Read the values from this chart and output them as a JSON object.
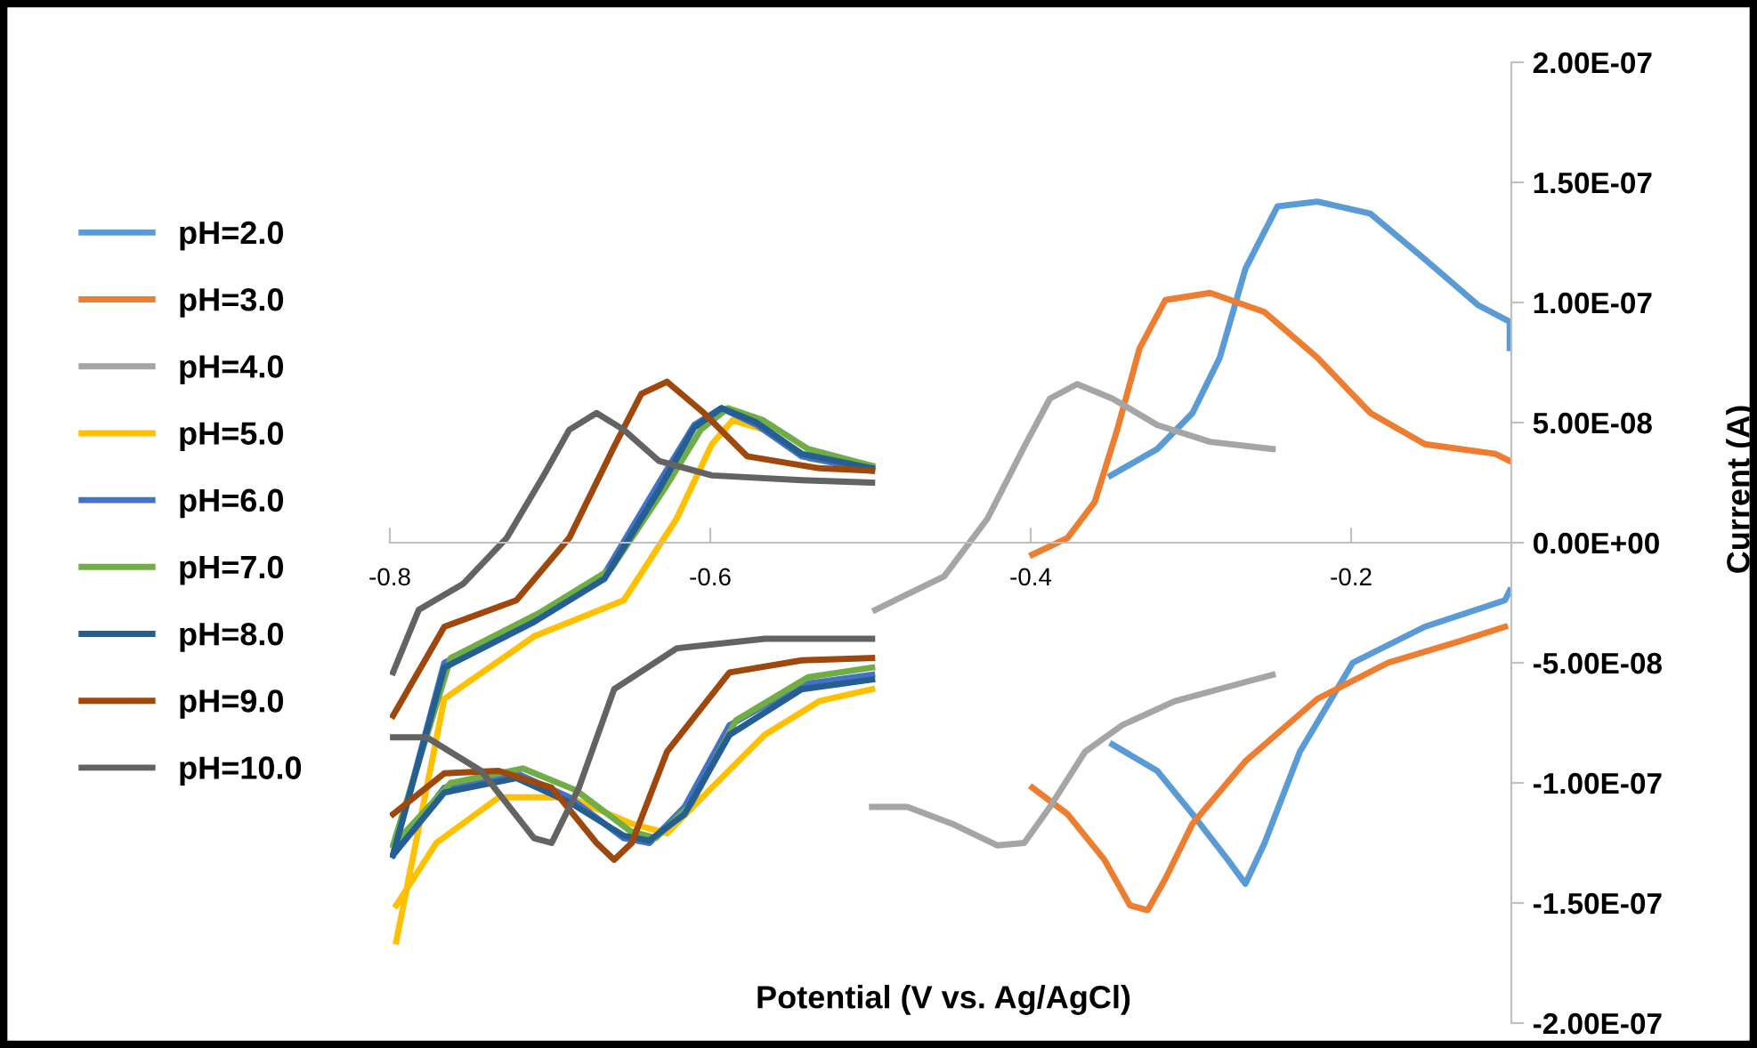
{
  "chart_data": {
    "type": "line",
    "xlabel": "Potential (V vs. Ag/AgCl)",
    "ylabel": "Current (A)",
    "xlim": [
      -0.8,
      -0.1
    ],
    "xticks": [
      -0.8,
      -0.6,
      -0.4,
      -0.2
    ],
    "ylim": [
      -2e-07,
      2e-07
    ],
    "yticks": [
      {
        "value": 2e-07,
        "label": "2.00E-07"
      },
      {
        "value": 1.5e-07,
        "label": "1.50E-07"
      },
      {
        "value": 1e-07,
        "label": "1.00E-07"
      },
      {
        "value": 5e-08,
        "label": "5.00E-08"
      },
      {
        "value": 0,
        "label": "0.00E+00"
      },
      {
        "value": -5e-08,
        "label": "-5.00E-08"
      },
      {
        "value": -1e-07,
        "label": "-1.00E-07"
      },
      {
        "value": -1.5e-07,
        "label": "-1.50E-07"
      },
      {
        "value": -2e-07,
        "label": "-2.00E-07"
      }
    ],
    "grid": false,
    "legend": "left",
    "marker": "none",
    "line_style": "solid",
    "series": [
      {
        "name": "pH=2.0",
        "color": "#5b9bd5",
        "x": [
          -0.35,
          -0.321,
          -0.299,
          -0.282,
          -0.266,
          -0.246,
          -0.221,
          -0.188,
          -0.154,
          -0.121,
          -0.101,
          -0.101,
          null,
          -0.349,
          -0.321,
          -0.299,
          -0.277,
          -0.266,
          -0.254,
          -0.232,
          -0.199,
          -0.154,
          -0.104,
          -0.101
        ],
        "values": [
          2.8e-08,
          3.9e-08,
          5.4e-08,
          7.7e-08,
          1.14e-07,
          1.4e-07,
          1.42e-07,
          1.37e-07,
          1.18e-07,
          9.9e-08,
          9.2e-08,
          8.1e-08,
          null,
          -8.4e-08,
          -9.5e-08,
          -1.13e-07,
          -1.32e-07,
          -1.42e-07,
          -1.25e-07,
          -8.7e-08,
          -5e-08,
          -3.5e-08,
          -2.4e-08,
          -2e-08
        ]
      },
      {
        "name": "pH=3.0",
        "color": "#ed7d31",
        "x": [
          -0.399,
          -0.377,
          -0.36,
          -0.346,
          -0.332,
          -0.316,
          -0.288,
          -0.254,
          -0.221,
          -0.188,
          -0.154,
          -0.11,
          -0.101,
          null,
          -0.399,
          -0.377,
          -0.354,
          -0.338,
          -0.327,
          -0.316,
          -0.299,
          -0.266,
          -0.221,
          -0.177,
          -0.132,
          -0.104
        ],
        "values": [
          -5e-09,
          2e-09,
          1.7e-08,
          4.7e-08,
          8.1e-08,
          1.01e-07,
          1.04e-07,
          9.6e-08,
          7.7e-08,
          5.4e-08,
          4.1e-08,
          3.7e-08,
          3.4e-08,
          null,
          -1.02e-07,
          -1.13e-07,
          -1.32e-07,
          -1.51e-07,
          -1.53e-07,
          -1.4e-07,
          -1.17e-07,
          -9.1e-08,
          -6.5e-08,
          -5e-08,
          -4.1e-08,
          -3.5e-08
        ]
      },
      {
        "name": "pH=4.0",
        "color": "#a5a5a5",
        "x": [
          -0.497,
          -0.454,
          -0.427,
          -0.404,
          -0.388,
          -0.371,
          -0.349,
          -0.321,
          -0.288,
          -0.249,
          null,
          -0.499,
          -0.477,
          -0.449,
          -0.421,
          -0.404,
          -0.388,
          -0.366,
          -0.343,
          -0.31,
          -0.277,
          -0.249
        ],
        "values": [
          -2.8e-08,
          -1.4e-08,
          1e-08,
          4e-08,
          6e-08,
          6.6e-08,
          6e-08,
          4.9e-08,
          4.2e-08,
          3.9e-08,
          null,
          -1.1e-07,
          -1.1e-07,
          -1.17e-07,
          -1.26e-07,
          -1.25e-07,
          -1.1e-07,
          -8.7e-08,
          -7.6e-08,
          -6.6e-08,
          -6e-08,
          -5.5e-08
        ]
      },
      {
        "name": "pH=5.0",
        "color": "#ffc000",
        "x": [
          -0.796,
          -0.766,
          -0.71,
          -0.654,
          -0.621,
          -0.599,
          -0.586,
          -0.566,
          -0.538,
          -0.499,
          null,
          -0.796,
          -0.771,
          -0.732,
          -0.688,
          -0.649,
          -0.627,
          -0.599,
          -0.566,
          -0.532,
          -0.499
        ],
        "values": [
          -1.66e-07,
          -6.5e-08,
          -3.9e-08,
          -2.4e-08,
          1e-08,
          4.1e-08,
          5.1e-08,
          4.7e-08,
          3.5e-08,
          3.1e-08,
          null,
          -1.51e-07,
          -1.25e-07,
          -1.06e-07,
          -1.06e-07,
          -1.17e-07,
          -1.21e-07,
          -1.02e-07,
          -8e-08,
          -6.6e-08,
          -6.1e-08
        ]
      },
      {
        "name": "pH=6.0",
        "color": "#4472c4",
        "x": [
          -0.798,
          -0.766,
          -0.71,
          -0.666,
          -0.632,
          -0.61,
          -0.593,
          -0.571,
          -0.543,
          -0.499,
          null,
          -0.798,
          -0.766,
          -0.721,
          -0.688,
          -0.654,
          -0.638,
          -0.616,
          -0.588,
          -0.543,
          -0.499
        ],
        "values": [
          -1.3e-07,
          -5e-08,
          -3.1e-08,
          -1.3e-08,
          2.5e-08,
          4.9e-08,
          5.6e-08,
          4.9e-08,
          3.6e-08,
          3e-08,
          null,
          -1.3e-07,
          -1.02e-07,
          -9.6e-08,
          -1.06e-07,
          -1.23e-07,
          -1.25e-07,
          -1.1e-07,
          -7.6e-08,
          -5.9e-08,
          -5.5e-08
        ]
      },
      {
        "name": "pH=7.0",
        "color": "#70ad47",
        "x": [
          -0.798,
          -0.762,
          -0.706,
          -0.662,
          -0.628,
          -0.606,
          -0.589,
          -0.567,
          -0.539,
          -0.499,
          null,
          -0.798,
          -0.762,
          -0.717,
          -0.684,
          -0.65,
          -0.634,
          -0.612,
          -0.584,
          -0.539,
          -0.499
        ],
        "values": [
          -1.26e-07,
          -4.8e-08,
          -2.9e-08,
          -1.1e-08,
          2.3e-08,
          4.7e-08,
          5.6e-08,
          5.1e-08,
          3.9e-08,
          3.2e-08,
          null,
          -1.26e-07,
          -1e-07,
          -9.4e-08,
          -1.03e-07,
          -1.2e-07,
          -1.23e-07,
          -1.09e-07,
          -7.4e-08,
          -5.6e-08,
          -5.2e-08
        ]
      },
      {
        "name": "pH=8.0",
        "color": "#255e91",
        "x": [
          -0.798,
          -0.766,
          -0.71,
          -0.666,
          -0.632,
          -0.61,
          -0.593,
          -0.571,
          -0.543,
          -0.499,
          null,
          -0.798,
          -0.766,
          -0.721,
          -0.688,
          -0.654,
          -0.638,
          -0.616,
          -0.588,
          -0.543,
          -0.499
        ],
        "values": [
          -1.3e-07,
          -5.2e-08,
          -3.3e-08,
          -1.5e-08,
          2.2e-08,
          4.8e-08,
          5.6e-08,
          5e-08,
          3.7e-08,
          3.1e-08,
          null,
          -1.3e-07,
          -1.04e-07,
          -9.8e-08,
          -1.08e-07,
          -1.22e-07,
          -1.24e-07,
          -1.13e-07,
          -8e-08,
          -6.1e-08,
          -5.7e-08
        ]
      },
      {
        "name": "pH=9.0",
        "color": "#9e480e",
        "x": [
          -0.798,
          -0.766,
          -0.721,
          -0.688,
          -0.66,
          -0.643,
          -0.627,
          -0.604,
          -0.577,
          -0.532,
          -0.499,
          null,
          -0.798,
          -0.766,
          -0.732,
          -0.699,
          -0.671,
          -0.66,
          -0.649,
          -0.627,
          -0.588,
          -0.543,
          -0.499
        ],
        "values": [
          -7.2e-08,
          -3.5e-08,
          -2.4e-08,
          2e-09,
          4e-08,
          6.2e-08,
          6.7e-08,
          5.4e-08,
          3.6e-08,
          3.1e-08,
          3e-08,
          null,
          -1.13e-07,
          -9.6e-08,
          -9.5e-08,
          -1.02e-07,
          -1.25e-07,
          -1.32e-07,
          -1.25e-07,
          -8.7e-08,
          -5.4e-08,
          -4.9e-08,
          -4.8e-08
        ]
      },
      {
        "name": "pH=10.0",
        "color": "#636363",
        "x": [
          -0.798,
          -0.782,
          -0.754,
          -0.727,
          -0.704,
          -0.688,
          -0.671,
          -0.654,
          -0.632,
          -0.599,
          -0.543,
          -0.499,
          null,
          -0.798,
          -0.777,
          -0.743,
          -0.71,
          -0.699,
          -0.682,
          -0.66,
          -0.621,
          -0.566,
          -0.499
        ],
        "values": [
          -5.4e-08,
          -2.8e-08,
          -1.7e-08,
          2e-09,
          2.8e-08,
          4.7e-08,
          5.4e-08,
          4.7e-08,
          3.4e-08,
          2.8e-08,
          2.6e-08,
          2.5e-08,
          null,
          -8.1e-08,
          -8.1e-08,
          -9.5e-08,
          -1.23e-07,
          -1.25e-07,
          -1.02e-07,
          -6.1e-08,
          -4.4e-08,
          -4e-08,
          -4e-08
        ]
      }
    ]
  }
}
